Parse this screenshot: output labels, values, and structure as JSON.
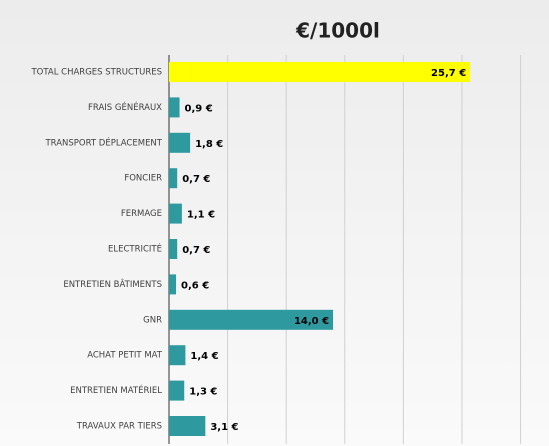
{
  "chart_data": {
    "type": "hbar",
    "title": "€/1000l",
    "categories": [
      "TOTAL CHARGES STRUCTURES",
      "FRAIS GÉNÉRAUX",
      "TRANSPORT DÉPLACEMENT",
      "FONCIER",
      "FERMAGE",
      "ELECTRICITÉ",
      "ENTRETIEN BÂTIMENTS",
      "GNR",
      "ACHAT PETIT MAT",
      "ENTRETIEN  MATÉRIEL",
      "TRAVAUX PAR TIERS"
    ],
    "values": [
      25.7,
      0.9,
      1.8,
      0.7,
      1.1,
      0.7,
      0.6,
      14.0,
      1.4,
      1.3,
      3.1
    ],
    "value_labels": [
      "25,7 €",
      "0,9 €",
      "1,8 €",
      "0,7 €",
      "1,1 €",
      "0,7 €",
      "0,6 €",
      "14,0 €",
      "1,4 €",
      "1,3 €",
      "3,1 €"
    ],
    "colors": [
      "#ffff00",
      "#2e9aa0",
      "#2e9aa0",
      "#2e9aa0",
      "#2e9aa0",
      "#2e9aa0",
      "#2e9aa0",
      "#2e9aa0",
      "#2e9aa0",
      "#2e9aa0",
      "#2e9aa0"
    ],
    "xlim": [
      0,
      32
    ],
    "xticks": [
      0,
      5,
      10,
      15,
      20,
      25,
      30
    ],
    "grid": true
  }
}
